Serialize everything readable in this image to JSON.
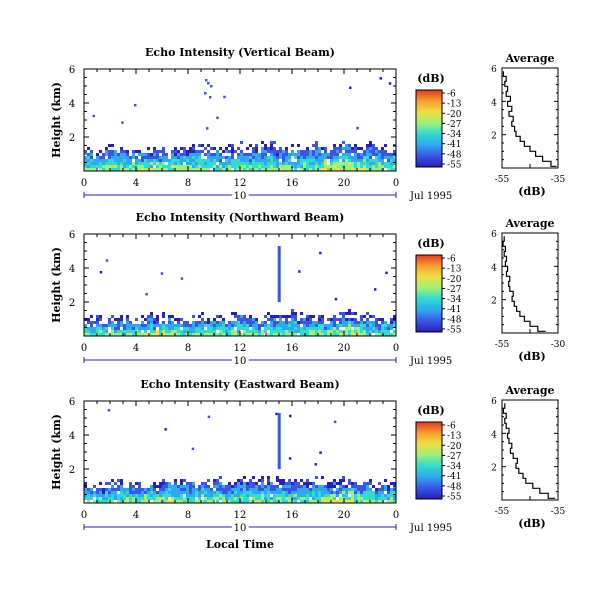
{
  "colors": {
    "scale": [
      "#2a1fb8",
      "#3a55e8",
      "#2fa8f0",
      "#30dcd0",
      "#9cf07a",
      "#f0e040",
      "#f5a030",
      "#e83820"
    ],
    "axis": "#000000",
    "time_bar": "#2222bb"
  },
  "colorbar": {
    "unit": "(dB)",
    "ticks": [
      "-6",
      "-13",
      "-20",
      "-27",
      "-34",
      "-41",
      "-48",
      "-55"
    ]
  },
  "x_axis_label": "Local Time",
  "chart_data": [
    {
      "type": "heatmap",
      "title": "Echo Intensity (Vertical Beam)",
      "ylabel": "Height (km)",
      "xlim": [
        0,
        24
      ],
      "ylim": [
        0,
        6
      ],
      "x_ticks": [
        "0",
        "4",
        "8",
        "12",
        "16",
        "20",
        "0"
      ],
      "y_ticks": [
        "2",
        "4",
        "6"
      ],
      "day_label": "10",
      "date_label": "Jul 1995",
      "color_range_db": [
        -55,
        -6
      ],
      "echo_top_km": [
        1.3,
        1.1,
        1.4,
        1.2,
        1.2,
        1.5,
        1.3,
        1.3,
        1.3,
        1.6,
        1.4,
        1.3,
        1.5,
        1.5,
        1.7,
        1.5,
        1.5,
        1.5,
        1.6,
        1.4,
        1.8,
        1.5,
        1.6,
        1.4,
        1.5
      ],
      "profile": {
        "title": "Average",
        "xlabel": "(dB)",
        "x_ticks": [
          "-55",
          "-35"
        ],
        "xlim": [
          -55,
          -35
        ],
        "y_ticks": [
          "2",
          "4",
          "6"
        ],
        "ylim": [
          0,
          6
        ],
        "height_km": [
          0.1,
          0.4,
          0.7,
          1.0,
          1.3,
          1.6,
          1.9,
          2.2,
          2.5,
          2.8,
          3.1,
          3.4,
          3.7,
          4.0,
          4.3,
          4.6,
          4.9,
          5.2,
          5.5,
          5.8
        ],
        "db": [
          -35.5,
          -37.5,
          -40.5,
          -43.0,
          -45.0,
          -47.0,
          -48.5,
          -50.0,
          -50.5,
          -51.5,
          -51.0,
          -52.5,
          -51.5,
          -53.0,
          -52.0,
          -53.5,
          -53.0,
          -54.0,
          -53.5,
          -54.5
        ]
      }
    },
    {
      "type": "heatmap",
      "title": "Echo Intensity (Northward Beam)",
      "ylabel": "Height (km)",
      "xlim": [
        0,
        24
      ],
      "ylim": [
        0,
        6
      ],
      "x_ticks": [
        "0",
        "4",
        "8",
        "12",
        "16",
        "20",
        "0"
      ],
      "y_ticks": [
        "2",
        "4",
        "6"
      ],
      "day_label": "10",
      "date_label": "Jul 1995",
      "color_range_db": [
        -55,
        -6
      ],
      "echo_top_km": [
        1.0,
        0.9,
        1.1,
        1.0,
        1.0,
        1.2,
        1.1,
        1.1,
        1.0,
        1.2,
        1.1,
        1.1,
        1.3,
        1.2,
        1.2,
        1.3,
        1.3,
        1.2,
        1.2,
        1.1,
        1.3,
        1.2,
        1.1,
        1.0,
        1.1
      ],
      "profile": {
        "title": "Average",
        "xlabel": "(dB)",
        "x_ticks": [
          "-55",
          "-30"
        ],
        "xlim": [
          -55,
          -30
        ],
        "y_ticks": [
          "2",
          "4",
          "6"
        ],
        "ylim": [
          0,
          6
        ],
        "height_km": [
          0.1,
          0.4,
          0.7,
          1.0,
          1.3,
          1.6,
          1.9,
          2.2,
          2.5,
          2.8,
          3.1,
          3.4,
          3.7,
          4.0,
          4.3,
          4.6,
          4.9,
          5.2,
          5.5,
          5.8
        ],
        "db": [
          -35.5,
          -39.0,
          -42.5,
          -45.0,
          -47.0,
          -48.5,
          -49.5,
          -50.5,
          -50.0,
          -51.5,
          -52.0,
          -51.5,
          -53.0,
          -52.5,
          -53.5,
          -53.0,
          -54.0,
          -53.5,
          -54.5,
          -54.0
        ]
      }
    },
    {
      "type": "heatmap",
      "title": "Echo Intensity (Eastward Beam)",
      "ylabel": "Height (km)",
      "xlim": [
        0,
        24
      ],
      "ylim": [
        0,
        6
      ],
      "x_ticks": [
        "0",
        "4",
        "8",
        "12",
        "16",
        "20",
        "0"
      ],
      "y_ticks": [
        "2",
        "4",
        "6"
      ],
      "day_label": "10",
      "date_label": "Jul 1995",
      "color_range_db": [
        -55,
        -6
      ],
      "echo_top_km": [
        1.1,
        1.0,
        1.2,
        1.3,
        1.1,
        1.2,
        1.2,
        1.3,
        1.2,
        1.4,
        1.3,
        1.3,
        1.4,
        1.4,
        1.5,
        1.3,
        1.4,
        1.3,
        1.5,
        1.3,
        1.4,
        1.3,
        1.2,
        1.1,
        1.2
      ],
      "profile": {
        "title": "Average",
        "xlabel": "(dB)",
        "x_ticks": [
          "-55",
          "-35"
        ],
        "xlim": [
          -55,
          -35
        ],
        "y_ticks": [
          "2",
          "4",
          "6"
        ],
        "ylim": [
          0,
          6
        ],
        "height_km": [
          0.1,
          0.4,
          0.7,
          1.0,
          1.3,
          1.6,
          1.9,
          2.2,
          2.5,
          2.8,
          3.1,
          3.4,
          3.7,
          4.0,
          4.3,
          4.6,
          4.9,
          5.2,
          5.5,
          5.8
        ],
        "db": [
          -36.0,
          -38.5,
          -41.5,
          -44.0,
          -46.5,
          -47.5,
          -49.0,
          -50.0,
          -49.5,
          -51.0,
          -52.0,
          -51.5,
          -52.5,
          -53.0,
          -52.5,
          -53.5,
          -54.0,
          -53.5,
          -54.5,
          -54.0
        ]
      }
    }
  ]
}
